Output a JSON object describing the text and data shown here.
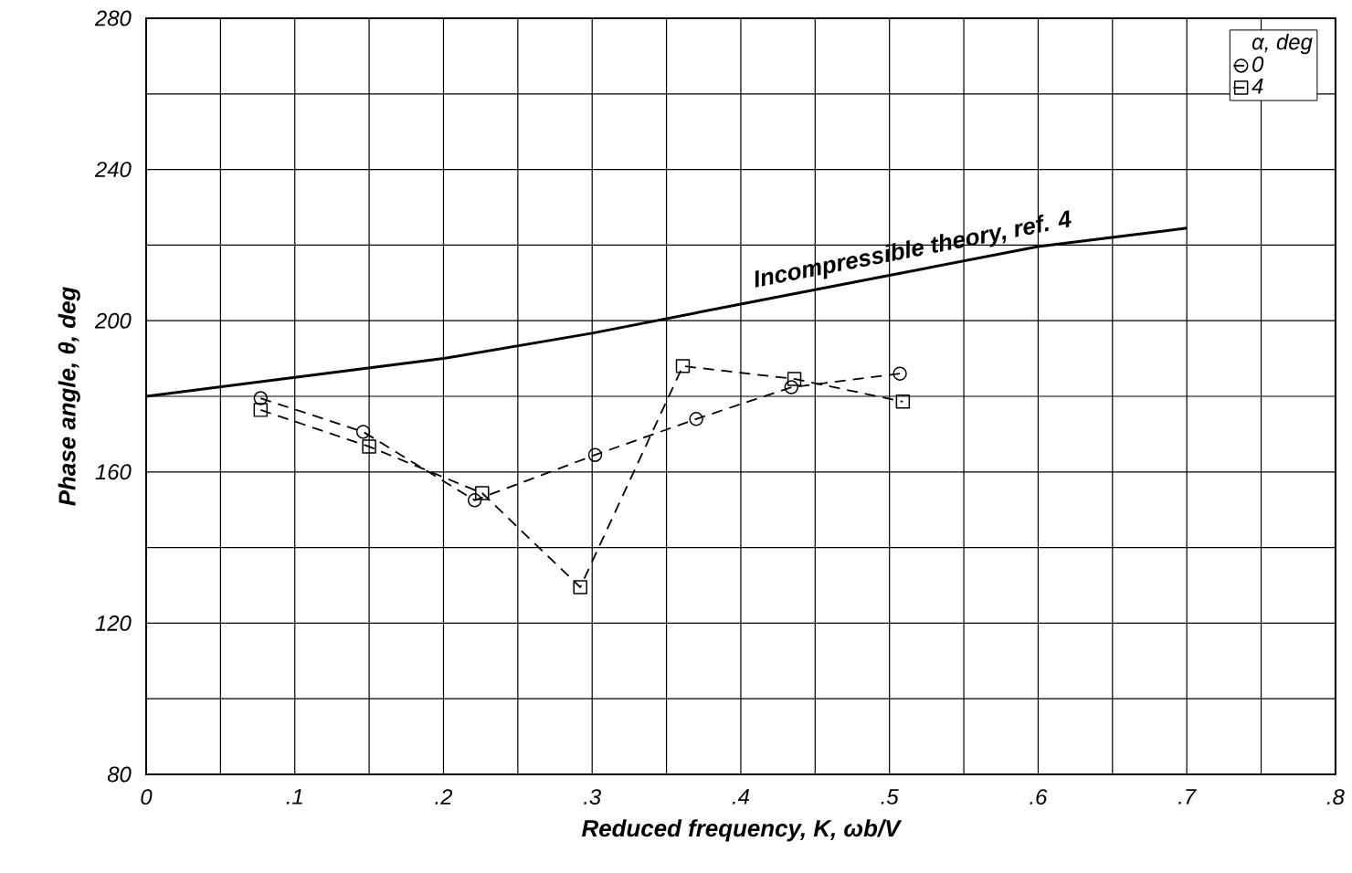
{
  "chart_data": {
    "type": "line",
    "xlabel": "Reduced frequency, K, ωb/V",
    "ylabel": "Phase angle, θ, deg",
    "legend_title": "α, deg",
    "xlim": [
      0,
      0.8
    ],
    "ylim": [
      80,
      280
    ],
    "xticks": [
      0,
      {
        "value": 0.1,
        "label": ".1"
      },
      {
        "value": 0.2,
        "label": ".2"
      },
      {
        "value": 0.3,
        "label": ".3"
      },
      {
        "value": 0.4,
        "label": ".4"
      },
      {
        "value": 0.5,
        "label": ".5"
      },
      {
        "value": 0.6,
        "label": ".6"
      },
      {
        "value": 0.7,
        "label": ".7"
      },
      {
        "value": 0.8,
        "label": ".8"
      }
    ],
    "yticks": [
      80,
      120,
      160,
      200,
      240,
      280
    ],
    "grid": true,
    "legend": "top right",
    "series": [
      {
        "name": "Incompressible theory, ref. 4",
        "color": "#000000",
        "marker": "none",
        "line_style": "solid",
        "x": [
          0,
          0.1,
          0.2,
          0.3,
          0.4,
          0.5,
          0.6,
          0.7
        ],
        "values": [
          180,
          185,
          190,
          196.7,
          204.4,
          212,
          219.6,
          224.5
        ]
      },
      {
        "name": "0",
        "color": "#000000",
        "marker": "circle",
        "line_style": "dashed",
        "x": [
          0.077,
          0.146,
          0.221,
          0.302,
          0.37,
          0.434,
          0.507
        ],
        "values": [
          179.5,
          170.6,
          152.5,
          164.5,
          174,
          182.4,
          186
        ]
      },
      {
        "name": "4",
        "color": "#000000",
        "marker": "square",
        "line_style": "dashed",
        "x": [
          0.077,
          0.15,
          0.226,
          0.292,
          0.361,
          0.436,
          0.509
        ],
        "values": [
          176.4,
          166.7,
          154.4,
          129.5,
          188,
          184.6,
          178.6
        ]
      }
    ]
  }
}
